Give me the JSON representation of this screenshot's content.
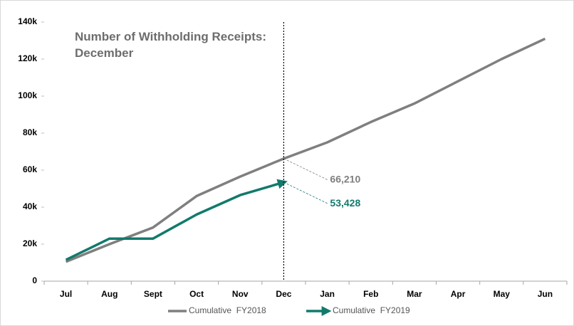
{
  "chart_data": {
    "type": "line",
    "title": "Number of Withholding Receipts: December",
    "categories": [
      "Jul",
      "Aug",
      "Sept",
      "Oct",
      "Nov",
      "Dec",
      "Jan",
      "Feb",
      "Mar",
      "Apr",
      "May",
      "Jun"
    ],
    "series": [
      {
        "name": "Cumulative  FY2018",
        "color": "#7f7f7f",
        "values": [
          10500,
          20000,
          29000,
          46000,
          56500,
          66210,
          75000,
          86000,
          96000,
          108000,
          120000,
          131000
        ],
        "value_labels": [
          null,
          null,
          null,
          null,
          null,
          "66,210",
          null,
          null,
          null,
          null,
          null,
          null
        ]
      },
      {
        "name": "Cumulative  FY2019",
        "color": "#127a6c",
        "values": [
          11500,
          23000,
          23000,
          36000,
          46500,
          53428,
          null,
          null,
          null,
          null,
          null,
          null
        ],
        "value_labels": [
          null,
          null,
          null,
          null,
          null,
          "53,428",
          null,
          null,
          null,
          null,
          null,
          null
        ]
      }
    ],
    "ylim": [
      0,
      140000
    ],
    "yticks": [
      0,
      {
        "value": 20000,
        "label": "20k"
      },
      {
        "value": 40000,
        "label": "40k"
      },
      {
        "value": 60000,
        "label": "60k"
      },
      {
        "value": 80000,
        "label": "80k"
      },
      {
        "value": 100000,
        "label": "100k"
      },
      {
        "value": 120000,
        "label": "120k"
      },
      {
        "value": 140000,
        "label": "140k"
      }
    ],
    "legend": "bottom"
  }
}
